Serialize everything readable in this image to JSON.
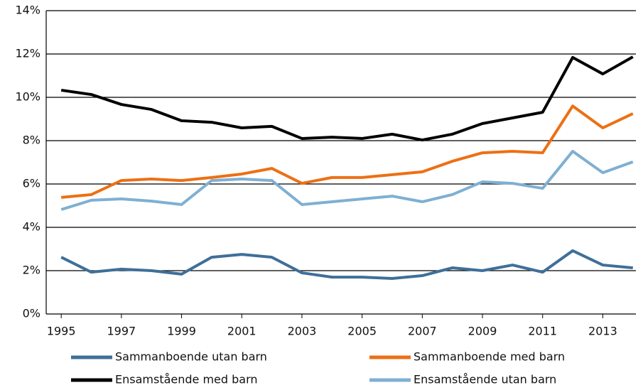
{
  "chart_data": {
    "type": "line",
    "x": [
      1995,
      1996,
      1997,
      1998,
      1999,
      2000,
      2001,
      2002,
      2003,
      2004,
      2005,
      2006,
      2007,
      2008,
      2009,
      2010,
      2011,
      2012,
      2013,
      2014
    ],
    "xlim": [
      1994.5,
      2014.1
    ],
    "xticks": [
      1995,
      1997,
      1999,
      2001,
      2003,
      2005,
      2007,
      2009,
      2011,
      2013
    ],
    "ylim": [
      0,
      14
    ],
    "yticks": [
      {
        "value": 0,
        "label": "0%"
      },
      {
        "value": 2,
        "label": "2%"
      },
      {
        "value": 4,
        "label": "4%"
      },
      {
        "value": 6,
        "label": "6%"
      },
      {
        "value": 8,
        "label": "8%"
      },
      {
        "value": 10,
        "label": "10%"
      },
      {
        "value": 12,
        "label": "12%"
      },
      {
        "value": 14,
        "label": "14%"
      }
    ],
    "grid": true,
    "series": [
      {
        "name": "Sammanboende utan barn",
        "color": "#3f6f99",
        "values": [
          2.62,
          1.93,
          2.07,
          2.0,
          1.84,
          2.62,
          2.75,
          2.62,
          1.9,
          1.7,
          1.7,
          1.64,
          1.77,
          2.13,
          2.0,
          2.26,
          1.93,
          2.92,
          2.26,
          2.13
        ]
      },
      {
        "name": "Sammanboende med barn",
        "color": "#ec7014",
        "values": [
          5.38,
          5.51,
          6.16,
          6.23,
          6.16,
          6.3,
          6.46,
          6.72,
          6.03,
          6.3,
          6.3,
          6.43,
          6.56,
          7.05,
          7.44,
          7.51,
          7.44,
          9.6,
          8.59,
          9.25
        ]
      },
      {
        "name": "Ensamstående med barn",
        "color": "#000000",
        "values": [
          10.33,
          10.13,
          9.67,
          9.44,
          8.92,
          8.85,
          8.59,
          8.66,
          8.1,
          8.16,
          8.1,
          8.3,
          8.03,
          8.3,
          8.79,
          9.05,
          9.31,
          11.84,
          11.08,
          11.87
        ]
      },
      {
        "name": "Ensamstående utan barn",
        "color": "#7fafd3",
        "values": [
          4.82,
          5.25,
          5.31,
          5.21,
          5.05,
          6.16,
          6.23,
          6.16,
          5.05,
          5.18,
          5.31,
          5.44,
          5.18,
          5.51,
          6.1,
          6.03,
          5.8,
          7.51,
          6.52,
          7.02
        ]
      }
    ]
  }
}
